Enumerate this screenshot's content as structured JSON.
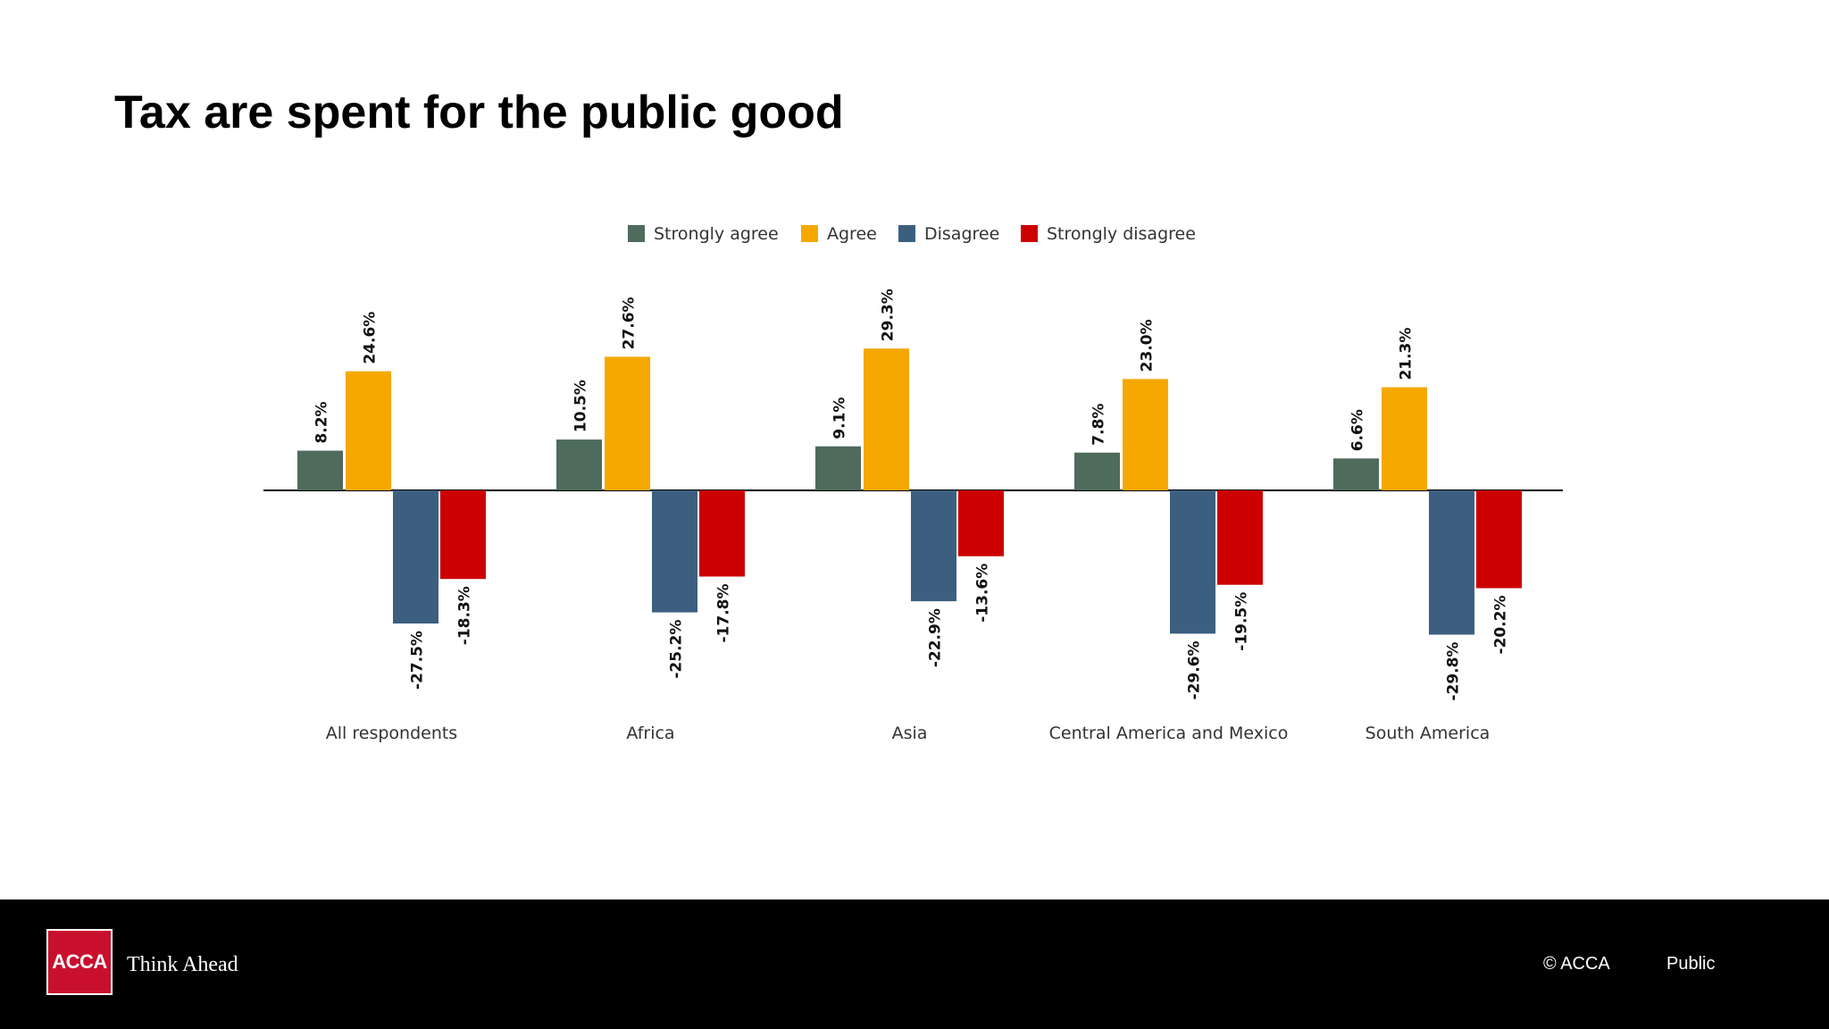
{
  "slide": {
    "title": "Tax are spent for the public good"
  },
  "footer": {
    "logo_text": "ACCA",
    "tagline": "Think Ahead",
    "copyright": "© ACCA",
    "classification": "Public"
  },
  "colors": {
    "strongly_agree": "#4e6b5c",
    "agree": "#f5a800",
    "disagree": "#3c5f80",
    "strongly_disagree": "#cc0000",
    "logo": "#c8102e"
  },
  "chart_data": {
    "type": "bar",
    "title": "",
    "xlabel": "",
    "ylabel": "",
    "ylim": [
      -30,
      30
    ],
    "legend_position": "top-center",
    "grid": false,
    "categories": [
      "All respondents",
      "Africa",
      "Asia",
      "Central America and Mexico",
      "South America"
    ],
    "series": [
      {
        "name": "Strongly agree",
        "color": "#4e6b5c",
        "values": [
          8.2,
          10.5,
          9.1,
          7.8,
          6.6
        ],
        "labels": [
          "8.2%",
          "10.5%",
          "9.1%",
          "7.8%",
          "6.6%"
        ]
      },
      {
        "name": "Agree",
        "color": "#f5a800",
        "values": [
          24.6,
          27.6,
          29.3,
          23.0,
          21.3
        ],
        "labels": [
          "24.6%",
          "27.6%",
          "29.3%",
          "23.0%",
          "21.3%"
        ]
      },
      {
        "name": "Disagree",
        "color": "#3c5f80",
        "values": [
          -27.5,
          -25.2,
          -22.9,
          -29.6,
          -29.8
        ],
        "labels": [
          "-27.5%",
          "-25.2%",
          "-22.9%",
          "-29.6%",
          "-29.8%"
        ]
      },
      {
        "name": "Strongly disagree",
        "color": "#cc0000",
        "values": [
          -18.3,
          -17.8,
          -13.6,
          -19.5,
          -20.2
        ],
        "labels": [
          "-18.3%",
          "-17.8%",
          "-13.6%",
          "-19.5%",
          "-20.2%"
        ]
      }
    ]
  }
}
